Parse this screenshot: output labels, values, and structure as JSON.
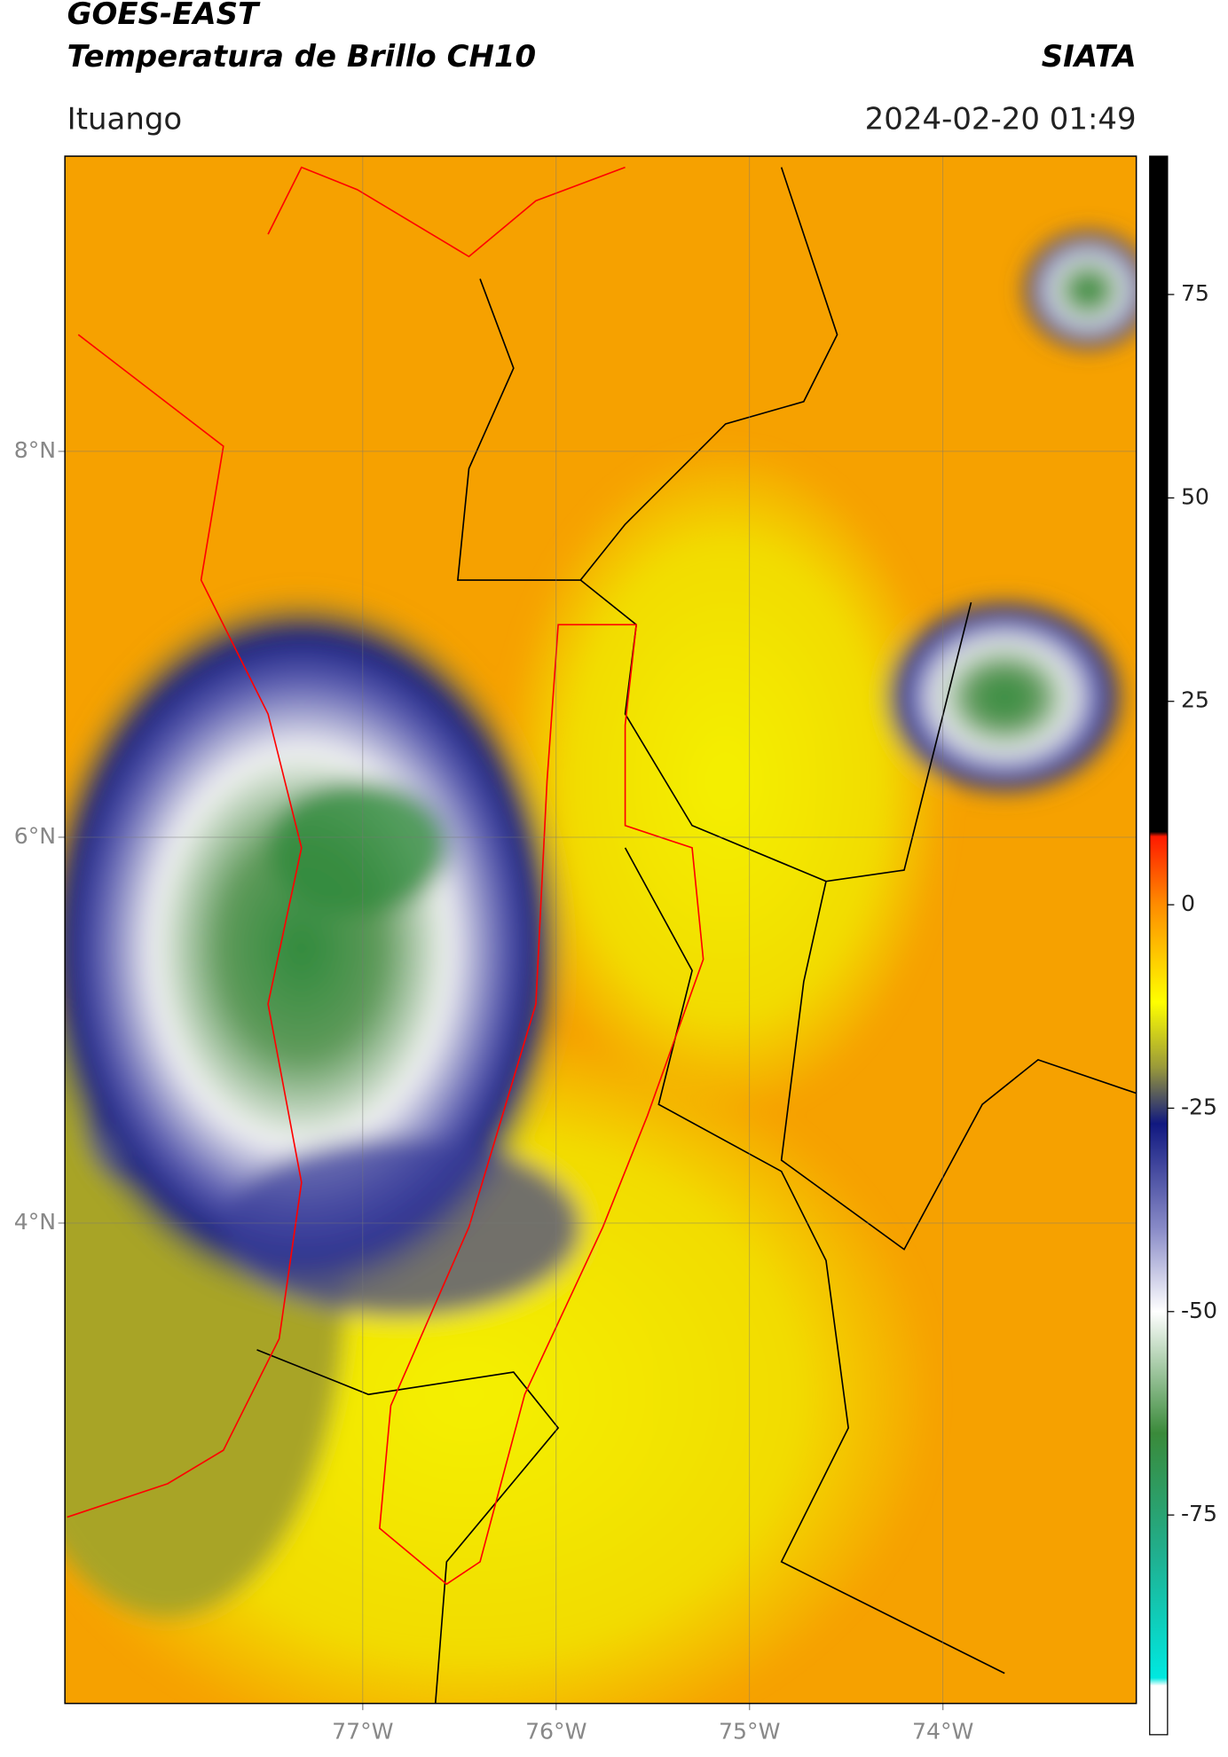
{
  "header": {
    "title_line1": "GOES-EAST",
    "title_line2": "Temperatura de Brillo CH10",
    "agency": "SIATA",
    "location": "Ituango",
    "datetime": "2024-02-20 01:49"
  },
  "map": {
    "xlim": [
      -78.54,
      -73.0
    ],
    "ylim": [
      1.51,
      9.53
    ],
    "xticks": [
      {
        "value": -77,
        "label": "77°W"
      },
      {
        "value": -76,
        "label": "76°W"
      },
      {
        "value": -75,
        "label": "75°W"
      },
      {
        "value": -74,
        "label": "74°W"
      }
    ],
    "yticks": [
      {
        "value": 8,
        "label": "8°N"
      },
      {
        "value": 6,
        "label": "6°N"
      },
      {
        "value": 4,
        "label": "4°N"
      }
    ],
    "grid": true
  },
  "colorbar": {
    "clim": [
      -102,
      92
    ],
    "ticks": [
      75,
      50,
      25,
      0,
      -25,
      -50,
      -75
    ]
  }
}
